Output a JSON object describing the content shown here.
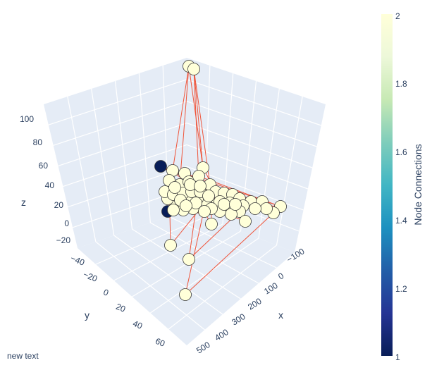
{
  "chart_data": {
    "type": "scatter3d",
    "title": "",
    "axes": {
      "x": {
        "label": "x",
        "ticks": [
          "−100",
          "0",
          "100",
          "200",
          "300",
          "400",
          "500"
        ]
      },
      "y": {
        "label": "y",
        "ticks": [
          "−40",
          "−20",
          "0",
          "20",
          "40",
          "60"
        ]
      },
      "z": {
        "label": "z",
        "ticks": [
          "−20",
          "0",
          "20",
          "40",
          "60",
          "80",
          "100"
        ]
      }
    },
    "colorbar": {
      "title": "Node Connections",
      "range": [
        1,
        2
      ],
      "ticks": [
        "2",
        "1.8",
        "1.6",
        "1.4",
        "1.2",
        "1"
      ],
      "colorscale": "YlGnBu"
    },
    "edge_color": "#ef553b",
    "node_count_shown": 60
  },
  "annotation": "new text"
}
